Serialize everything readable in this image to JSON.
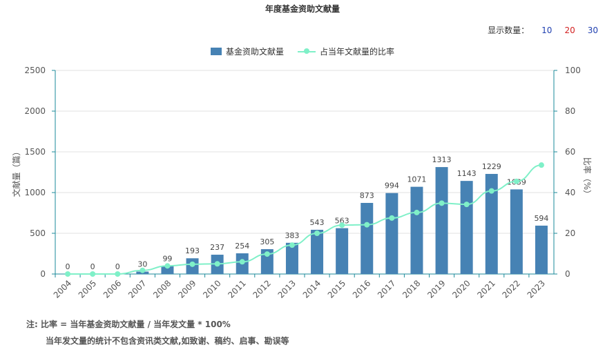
{
  "title": "年度基金资助文献量",
  "count_selector": {
    "label": "显示数量：",
    "options": [
      {
        "value": "10",
        "color": "#1f3fb0"
      },
      {
        "value": "20",
        "color": "#d21f1f"
      },
      {
        "value": "30",
        "color": "#1f3fb0"
      }
    ]
  },
  "legend": {
    "bar_label": "基金资助文献量",
    "line_label": "占当年文献量的比率"
  },
  "notes": {
    "line1": "注:  比率 = 当年基金资助文献量 / 当年发文量 * 100%",
    "line2": "当年发文量的统计不包含资讯类文献,如致谢、稿约、启事、勘误等"
  },
  "chart_data": {
    "type": "bar",
    "title": "年度基金资助文献量",
    "categories": [
      "2004",
      "2005",
      "2006",
      "2007",
      "2008",
      "2009",
      "2010",
      "2011",
      "2012",
      "2013",
      "2014",
      "2015",
      "2016",
      "2017",
      "2018",
      "2019",
      "2020",
      "2021",
      "2022",
      "2023"
    ],
    "series": [
      {
        "name": "基金资助文献量",
        "type": "bar",
        "axis": "left",
        "values": [
          0,
          0,
          0,
          30,
          99,
          193,
          237,
          254,
          305,
          383,
          543,
          563,
          873,
          994,
          1071,
          1313,
          1143,
          1229,
          1039,
          594
        ]
      },
      {
        "name": "占当年文献量的比率",
        "type": "line",
        "axis": "right",
        "values": [
          0,
          0,
          0,
          1.8,
          4,
          4.8,
          5,
          6,
          9.8,
          14.2,
          20,
          24,
          24.2,
          27.5,
          30.2,
          34.8,
          34.2,
          40.8,
          45.5,
          53.5
        ]
      }
    ],
    "ylabel_left": "文献量（篇）",
    "ylabel_right": "比率（%）",
    "ylim_left": [
      0,
      2500
    ],
    "ylim_right": [
      0,
      100
    ],
    "yticks_left": [
      0,
      500,
      1000,
      1500,
      2000,
      2500
    ],
    "yticks_right": [
      0,
      20,
      40,
      60,
      80,
      100
    ],
    "grid": true,
    "legend_position": "top-center",
    "colors": {
      "bar": "#4682b4",
      "line": "#7ff0c8",
      "axis": "#1a8a9a"
    }
  }
}
